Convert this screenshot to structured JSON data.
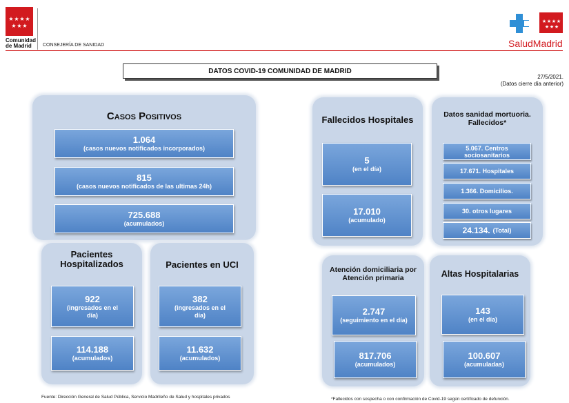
{
  "header": {
    "org_name_line1": "Comunidad",
    "org_name_line2": "de Madrid",
    "department": "CONSEJERÍA DE SANIDAD",
    "brand": "SaludMadrid",
    "brand_color": "#d21a1f",
    "logo_red": "#d21a1f",
    "logo_blue": "#2f8fd6"
  },
  "title": "DATOS COVID-19 COMUNIDAD DE MADRID",
  "date": {
    "line1": "27/5/2021.",
    "line2": "(Datos cierre día anterior)"
  },
  "casos_positivos": {
    "title": "Casos Positivos",
    "items": [
      {
        "value": "1.064",
        "label": "(casos nuevos notificados incorporados)"
      },
      {
        "value": "815",
        "label": "(casos nuevos notificados de las ultimas 24h)"
      },
      {
        "value": "725.688",
        "label": "(acumulados)"
      }
    ]
  },
  "hospitalizados": {
    "title": "Pacientes Hospitalizados",
    "day": {
      "value": "922",
      "label": "(ingresados en el día)"
    },
    "total": {
      "value": "114.188",
      "label": "(acumulados)"
    }
  },
  "uci": {
    "title": "Pacientes en UCI",
    "day": {
      "value": "382",
      "label": "(ingresados en el día)"
    },
    "total": {
      "value": "11.632",
      "label": "(acumulados)"
    }
  },
  "fallecidos": {
    "title": "Fallecidos Hospitales",
    "day": {
      "value": "5",
      "label": "(en el día)"
    },
    "total": {
      "value": "17.010",
      "label": "(acumulado)"
    }
  },
  "mortuoria": {
    "title": "Datos sanidad mortuoria. Fallecidos*",
    "items": [
      "5.067. Centros sociosanitarios",
      "17.671. Hospitales",
      "1.366. Domicilios.",
      "30. otros lugares"
    ],
    "total_value": "24.134.",
    "total_label": "(Total)"
  },
  "domiciliaria": {
    "title": "Atención domiciliaria por Atención primaria",
    "day": {
      "value": "2.747",
      "label": "(seguimiento en el día)"
    },
    "total": {
      "value": "817.706",
      "label": "(acumulados)"
    }
  },
  "altas": {
    "title": "Altas Hospitalarias",
    "day": {
      "value": "143",
      "label": "(en el día)"
    },
    "total": {
      "value": "100.607",
      "label": "(acumuladas)"
    }
  },
  "footer": {
    "source": "Fuente: Dirección General de Salud Pública, Servicio Madrileño de Salud y hospitales privados",
    "note": "*Fallecidos con sospecha o con confirmación de Covid-19 según certificado de defunción."
  }
}
